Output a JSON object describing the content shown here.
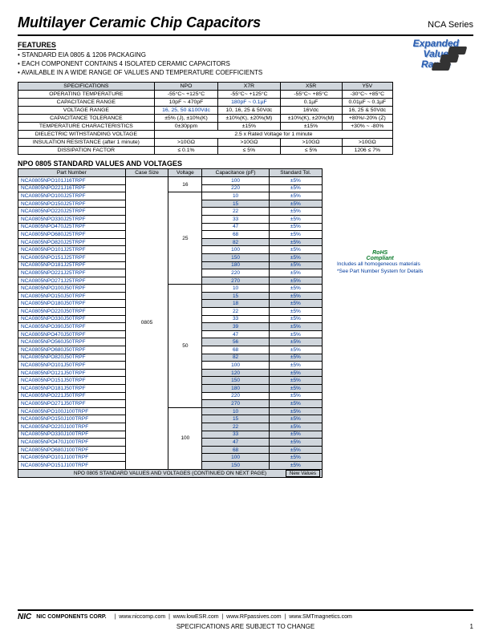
{
  "header": {
    "title": "Multilayer Ceramic Chip Capacitors",
    "series": "NCA Series"
  },
  "features": {
    "label": "FEATURES",
    "items": [
      "STANDARD EIA 0805 & 1206 PACKAGING",
      "EACH COMPONENT CONTAINS 4 ISOLATED CERAMIC CAPACITORS",
      "AVAILABLE IN A WIDE RANGE OF VALUES AND TEMPERATURE COEFFICIENTS"
    ]
  },
  "expanded": {
    "l1": "Expanded",
    "l2": "Value",
    "l3": "Range"
  },
  "spec": {
    "head": [
      "SPECIFICATIONS",
      "NPO",
      "X7R",
      "X5R",
      "Y5V"
    ],
    "rows": [
      [
        "OPERATING TEMPERATURE",
        "-55°C~ +125°C",
        "-55°C~ +125°C",
        "-55°C~ +85°C",
        "-30°C~ +85°C"
      ],
      [
        "CAPACITANCE RANGE",
        "10pF ~ 470pF",
        "180pF ~ 0.1µF",
        "0.1µF",
        "0.01µF ~ 0.1µF"
      ],
      [
        "VOLTAGE RANGE",
        "16, 25, 50 &100Vdc",
        "10, 16, 25 & 50Vdc",
        "16Vdc",
        "16, 25 & 50Vdc"
      ],
      [
        "CAPACITANCE TOLERANCE",
        "±5% (J), ±10%(K)",
        "±10%(K), ±20%(M)",
        "±10%(K), ±20%(M)",
        "+80%/-20% (Z)"
      ],
      [
        "TEMPERATURE CHARACTERISTICS",
        "0±30ppm",
        "±15%",
        "±15%",
        "+30% ~ -80%"
      ],
      [
        "DIELECTRIC WITHSTANDING VOLTAGE",
        "2.5 x Rated Voltage for 1 minute",
        "",
        "",
        ""
      ],
      [
        "INSULATION RESISTANCE (after 1 minute)",
        ">10GΩ",
        ">10GΩ",
        ">10GΩ",
        ">10GΩ"
      ],
      [
        "DISSIPATION FACTOR",
        "≤ 0.1%",
        "≤ 5%",
        "≤ 5%",
        "1206 ≤ 7%"
      ]
    ],
    "blue_cells": {
      "1": [
        2
      ],
      "2": [
        1
      ]
    }
  },
  "vals": {
    "title": "NPO 0805 STANDARD VALUES AND VOLTAGES",
    "head": [
      "Part Number",
      "Case Size",
      "Voltage",
      "Capacitance (pF)",
      "Standard Tol."
    ],
    "case_size": "0805",
    "groups": [
      {
        "voltage": "16",
        "rows": [
          [
            "NCA0805NPO101J16TRPF",
            "100",
            "±5%",
            false
          ],
          [
            "NCA0805NPO221J16TRPF",
            "220",
            "±5%",
            false
          ]
        ]
      },
      {
        "voltage": "25",
        "rows": [
          [
            "NCA0805NPO100J25TRPF",
            "10",
            "±5%",
            false
          ],
          [
            "NCA0805NPO150J25TRPF",
            "15",
            "±5%",
            true
          ],
          [
            "NCA0805NPO220J25TRPF",
            "22",
            "±5%",
            false
          ],
          [
            "NCA0805NPO330J25TRPF",
            "33",
            "±5%",
            false
          ],
          [
            "NCA0805NPO470J25TRPF",
            "47",
            "±5%",
            false
          ],
          [
            "NCA0805NPO680J25TRPF",
            "68",
            "±5%",
            false
          ],
          [
            "NCA0805NPO820J25TRPF",
            "82",
            "±5%",
            true
          ],
          [
            "NCA0805NPO101J25TRPF",
            "100",
            "±5%",
            false
          ],
          [
            "NCA0805NPO151J25TRPF",
            "150",
            "±5%",
            true
          ],
          [
            "NCA0805NPO181J25TRPF",
            "180",
            "±5%",
            true
          ],
          [
            "NCA0805NPO221J25TRPF",
            "220",
            "±5%",
            false
          ],
          [
            "NCA0805NPO271J25TRPF",
            "270",
            "±5%",
            true
          ]
        ]
      },
      {
        "voltage": "50",
        "rows": [
          [
            "NCA0805NPO100J50TRPF",
            "10",
            "±5%",
            false
          ],
          [
            "NCA0805NPO150J50TRPF",
            "15",
            "±5%",
            true
          ],
          [
            "NCA0805NPO180J50TRPF",
            "18",
            "±5%",
            true
          ],
          [
            "NCA0805NPO220J50TRPF",
            "22",
            "±5%",
            false
          ],
          [
            "NCA0805NPO330J50TRPF",
            "33",
            "±5%",
            false
          ],
          [
            "NCA0805NPO390J50TRPF",
            "39",
            "±5%",
            true
          ],
          [
            "NCA0805NPO470J50TRPF",
            "47",
            "±5%",
            false
          ],
          [
            "NCA0805NPO560J50TRPF",
            "56",
            "±5%",
            true
          ],
          [
            "NCA0805NPO680J50TRPF",
            "68",
            "±5%",
            false
          ],
          [
            "NCA0805NPO820J50TRPF",
            "82",
            "±5%",
            true
          ],
          [
            "NCA0805NPO101J50TRPF",
            "100",
            "±5%",
            false
          ],
          [
            "NCA0805NPO121J50TRPF",
            "120",
            "±5%",
            true
          ],
          [
            "NCA0805NPO151J50TRPF",
            "150",
            "±5%",
            true
          ],
          [
            "NCA0805NPO181J50TRPF",
            "180",
            "±5%",
            true
          ],
          [
            "NCA0805NPO221J50TRPF",
            "220",
            "±5%",
            false
          ],
          [
            "NCA0805NPO271J50TRPF",
            "270",
            "±5%",
            true
          ]
        ]
      },
      {
        "voltage": "100",
        "rows": [
          [
            "NCA0805NPO100J100TRPF",
            "10",
            "±5%",
            true
          ],
          [
            "NCA0805NPO150J100TRPF",
            "15",
            "±5%",
            true
          ],
          [
            "NCA0805NPO220J100TRPF",
            "22",
            "±5%",
            true
          ],
          [
            "NCA0805NPO330J100TRPF",
            "33",
            "±5%",
            true
          ],
          [
            "NCA0805NPO470J100TRPF",
            "47",
            "±5%",
            true
          ],
          [
            "NCA0805NPO680J100TRPF",
            "68",
            "±5%",
            true
          ],
          [
            "NCA0805NPO101J100TRPF",
            "100",
            "±5%",
            true
          ],
          [
            "NCA0805NPO151J100TRPF",
            "150",
            "±5%",
            true
          ]
        ]
      }
    ],
    "continued": "NPO 0805 STANDARD VALUES AND VOLTAGES (CONTINUED ON NEXT PAGE)",
    "newvals": "New Values"
  },
  "rohs": {
    "l1": "RoHS",
    "l2": "Compliant",
    "sub": "Includes all homogeneous materials",
    "see": "*See Part Number System for Details"
  },
  "footer": {
    "corp": "NIC COMPONENTS CORP.",
    "links": [
      "www.niccomp.com",
      "www.lowESR.com",
      "www.RFpassives.com",
      "www.SMTmagnetics.com"
    ],
    "logo": "NIC",
    "spec_note": "SPECIFICATIONS ARE SUBJECT TO CHANGE",
    "page": "1"
  }
}
